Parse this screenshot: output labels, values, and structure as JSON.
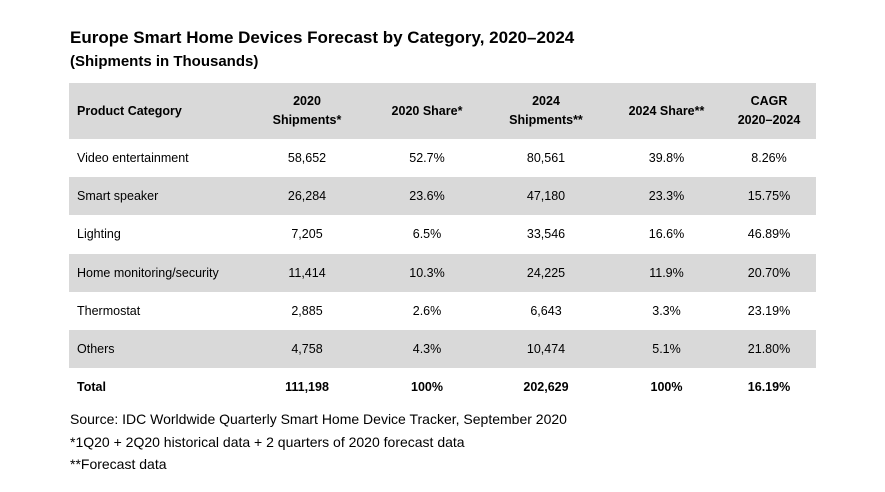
{
  "chart_data": {
    "type": "table",
    "title": "Europe Smart Home Devices Forecast by Category, 2020–2024",
    "subtitle": "(Shipments in Thousands)",
    "columns": [
      {
        "line1": "Product Category",
        "line2": ""
      },
      {
        "line1": "2020",
        "line2": "Shipments*"
      },
      {
        "line1": "2020 Share*",
        "line2": ""
      },
      {
        "line1": "2024",
        "line2": "Shipments**"
      },
      {
        "line1": "2024 Share**",
        "line2": ""
      },
      {
        "line1": "CAGR",
        "line2": "2020–2024"
      }
    ],
    "rows": [
      [
        "Video entertainment",
        "58,652",
        "52.7%",
        "80,561",
        "39.8%",
        "8.26%"
      ],
      [
        "Smart speaker",
        "26,284",
        "23.6%",
        "47,180",
        "23.3%",
        "15.75%"
      ],
      [
        "Lighting",
        "7,205",
        "6.5%",
        "33,546",
        "16.6%",
        "46.89%"
      ],
      [
        "Home monitoring/security",
        "11,414",
        "10.3%",
        "24,225",
        "11.9%",
        "20.70%"
      ],
      [
        "Thermostat",
        "2,885",
        "2.6%",
        "6,643",
        "3.3%",
        "23.19%"
      ],
      [
        "Others",
        "4,758",
        "4.3%",
        "10,474",
        "5.1%",
        "21.80%"
      ]
    ],
    "total": [
      "Total",
      "111,198",
      "100%",
      "202,629",
      "100%",
      "16.19%"
    ],
    "notes": [
      "Source: IDC Worldwide Quarterly Smart Home Device Tracker, September 2020",
      "*1Q20 + 2Q20 historical data + 2 quarters of 2020 forecast data",
      "**Forecast data"
    ]
  },
  "colors": {
    "header_fill": "#d9d9d9",
    "row_band_fill": "#d9d9d9",
    "background": "#ffffff",
    "text": "#000000"
  }
}
